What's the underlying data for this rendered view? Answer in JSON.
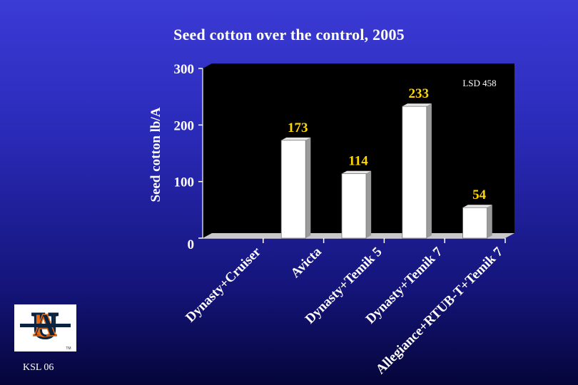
{
  "slide": {
    "footer_text": "KSL 06",
    "logo_trademark": "TM"
  },
  "chart_data": {
    "type": "bar",
    "title": "Seed cotton over the control, 2005",
    "ylabel": "Seed cotton lb/A",
    "xlabel": "",
    "ylim": [
      0,
      300
    ],
    "yticks": [
      0,
      100,
      200,
      300
    ],
    "categories": [
      "Dynasty+Cruiser",
      "Avicta",
      "Dynasty+Temik 5",
      "Dynasty+Temik 7",
      "Allegiance+RTUB-T+Temik 7"
    ],
    "values": [
      0,
      173,
      114,
      233,
      54
    ],
    "data_labels": [
      "",
      "173",
      "114",
      "233",
      "54"
    ],
    "annotation": "LSD 458",
    "grid": false,
    "colors": {
      "plot_background": "#000000",
      "bar_fill": "#ffffff",
      "data_label": "#ffd700",
      "text": "#ffffff"
    }
  }
}
